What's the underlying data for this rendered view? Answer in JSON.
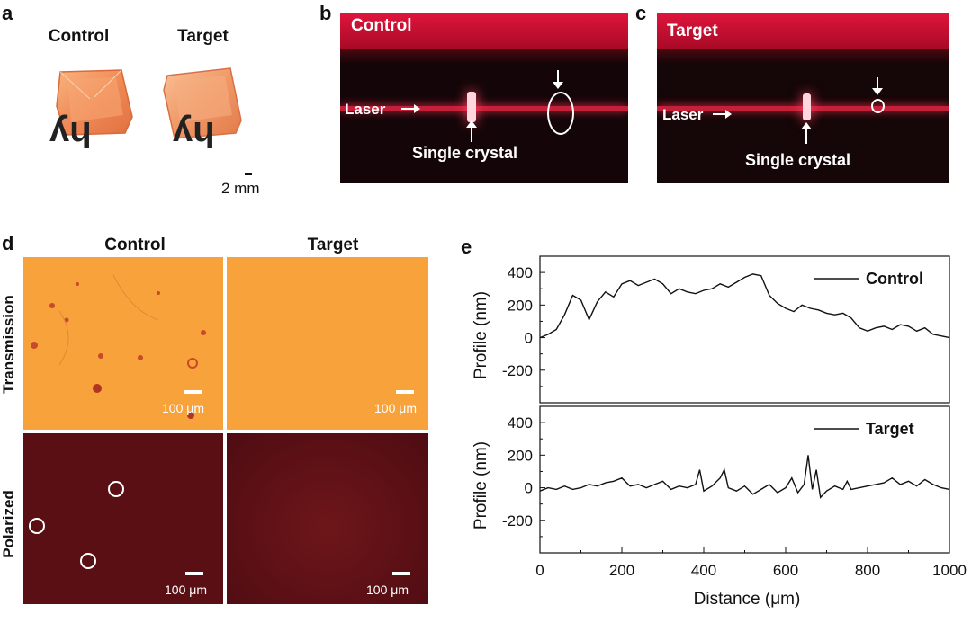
{
  "panels": {
    "a": {
      "label": "a",
      "titles": [
        "Control",
        "Target"
      ],
      "sample_letters": [
        "hy",
        "hy"
      ],
      "scale_text": "2 mm"
    },
    "b": {
      "label": "b",
      "title": "Control",
      "laser": "Laser",
      "crystal": "Single crystal"
    },
    "c": {
      "label": "c",
      "title": "Target",
      "laser": "Laser",
      "crystal": "Single crystal"
    },
    "d": {
      "label": "d",
      "col_titles": [
        "Control",
        "Target"
      ],
      "row_titles": [
        "Transmission",
        "Polarized"
      ],
      "scale_text": "100 μm",
      "colors": {
        "transmission": "#f7a23a",
        "polarized": "#5a0f14"
      }
    },
    "e": {
      "label": "e",
      "xlabel": "Distance (μm)",
      "ylabel": "Profile (nm)"
    }
  },
  "chart_data": {
    "type": "line",
    "xlabel": "Distance (μm)",
    "ylabel": "Profile (nm)",
    "xlim": [
      0,
      1000
    ],
    "xticks": [
      0,
      200,
      400,
      600,
      800,
      1000
    ],
    "ylim": [
      -400,
      500
    ],
    "yticks": [
      -200,
      0,
      200,
      400
    ],
    "series": [
      {
        "name": "Control",
        "x": [
          0,
          20,
          40,
          60,
          80,
          100,
          120,
          140,
          160,
          180,
          200,
          220,
          240,
          260,
          280,
          300,
          320,
          340,
          360,
          380,
          400,
          420,
          440,
          460,
          480,
          500,
          520,
          540,
          560,
          580,
          600,
          620,
          640,
          660,
          680,
          700,
          720,
          740,
          760,
          780,
          800,
          820,
          840,
          860,
          880,
          900,
          920,
          940,
          960,
          980,
          1000
        ],
        "values": [
          0,
          20,
          50,
          140,
          260,
          230,
          110,
          220,
          280,
          250,
          330,
          350,
          320,
          340,
          360,
          330,
          270,
          300,
          280,
          270,
          290,
          300,
          330,
          310,
          340,
          370,
          390,
          380,
          260,
          210,
          180,
          160,
          200,
          180,
          170,
          150,
          140,
          150,
          120,
          60,
          40,
          60,
          70,
          50,
          80,
          70,
          40,
          60,
          20,
          10,
          0
        ]
      },
      {
        "name": "Target",
        "x": [
          0,
          20,
          40,
          60,
          80,
          100,
          120,
          140,
          160,
          180,
          200,
          220,
          240,
          260,
          280,
          300,
          320,
          340,
          360,
          380,
          390,
          400,
          420,
          440,
          450,
          460,
          480,
          500,
          520,
          540,
          560,
          580,
          600,
          615,
          630,
          645,
          655,
          665,
          675,
          685,
          700,
          720,
          740,
          750,
          760,
          780,
          800,
          820,
          840,
          860,
          880,
          900,
          920,
          940,
          960,
          980,
          1000
        ],
        "values": [
          -20,
          0,
          -10,
          10,
          -10,
          0,
          20,
          10,
          30,
          40,
          60,
          10,
          20,
          0,
          20,
          40,
          -10,
          10,
          0,
          20,
          110,
          -20,
          10,
          60,
          110,
          0,
          -20,
          10,
          -40,
          -10,
          20,
          -30,
          0,
          60,
          -30,
          20,
          200,
          -10,
          110,
          -60,
          -20,
          10,
          -10,
          40,
          -10,
          0,
          10,
          20,
          30,
          60,
          20,
          40,
          10,
          50,
          20,
          0,
          -10
        ]
      }
    ]
  }
}
